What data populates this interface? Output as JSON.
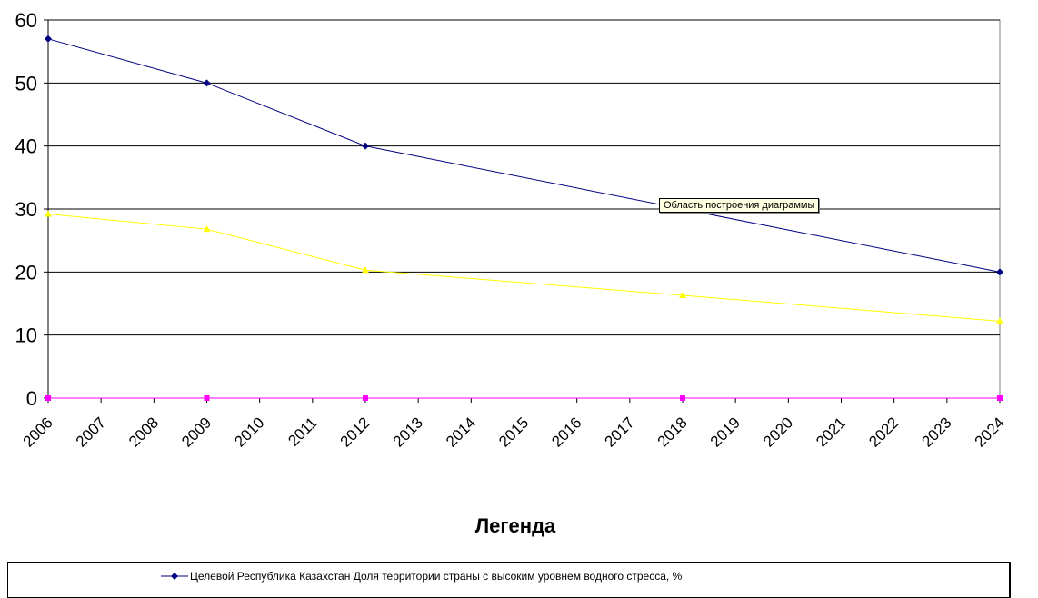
{
  "chart_data": {
    "type": "line",
    "categories": [
      "2006",
      "2007",
      "2008",
      "2009",
      "2010",
      "2011",
      "2012",
      "2013",
      "2014",
      "2015",
      "2016",
      "2017",
      "2018",
      "2019",
      "2020",
      "2021",
      "2022",
      "2023",
      "2024"
    ],
    "ylim": [
      0,
      60
    ],
    "yticks": [
      0,
      10,
      20,
      30,
      40,
      50,
      60
    ],
    "grid": true,
    "series": [
      {
        "name": "Целевой  Республика Казахстан   Доля территории страны с высоким уровнем водного стресса, %",
        "color": "#000080",
        "marker": "diamond",
        "points": [
          {
            "x": "2006",
            "y": 57
          },
          {
            "x": "2009",
            "y": 50
          },
          {
            "x": "2012",
            "y": 40
          },
          {
            "x": "2024",
            "y": 20
          }
        ]
      },
      {
        "color": "#ffff00",
        "marker": "triangle",
        "points": [
          {
            "x": "2006",
            "y": 29.2
          },
          {
            "x": "2009",
            "y": 26.8
          },
          {
            "x": "2012",
            "y": 20.3
          },
          {
            "x": "2018",
            "y": 16.3
          },
          {
            "x": "2024",
            "y": 12.2
          }
        ]
      },
      {
        "color": "#ff00ff",
        "marker": "square",
        "points": [
          {
            "x": "2006",
            "y": 0
          },
          {
            "x": "2009",
            "y": 0
          },
          {
            "x": "2012",
            "y": 0
          },
          {
            "x": "2018",
            "y": 0
          },
          {
            "x": "2024",
            "y": 0
          }
        ]
      }
    ]
  },
  "legend": {
    "title": "Легенда",
    "entries": [
      {
        "label": "Целевой  Республика Казахстан   Доля территории страны с высоким уровнем водного стресса, %",
        "color": "#000080",
        "marker": "diamond"
      }
    ]
  },
  "tooltip": {
    "text": "Область построения диаграммы"
  }
}
